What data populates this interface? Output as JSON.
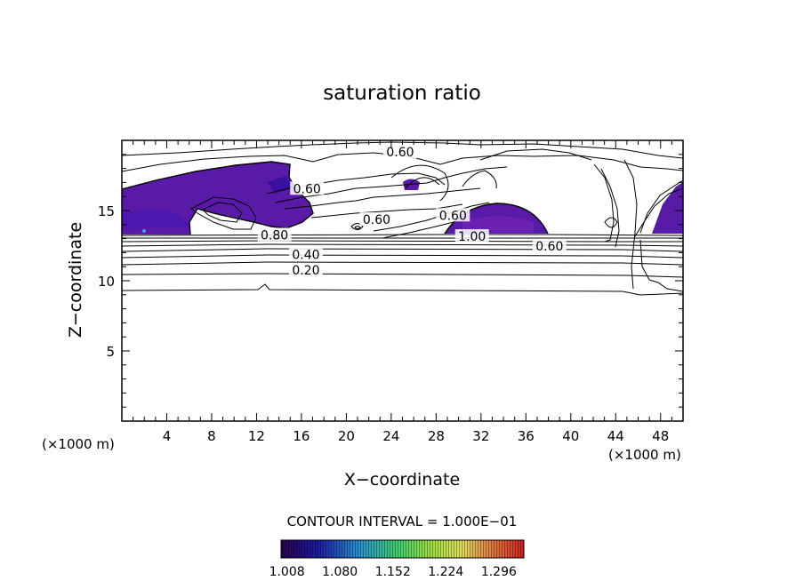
{
  "chart_data": {
    "type": "contour",
    "title": "saturation ratio",
    "xlabel": "X−coordinate",
    "ylabel": "Z−coordinate",
    "x_unit_left": "(×1000 m)",
    "x_unit_right": "(×1000 m)",
    "xlim": [
      0,
      50
    ],
    "ylim": [
      0,
      20
    ],
    "x_ticks": [
      4,
      8,
      12,
      16,
      20,
      24,
      28,
      32,
      36,
      40,
      44,
      48
    ],
    "y_ticks": [
      5,
      10,
      15
    ],
    "contour_interval_text": "CONTOUR INTERVAL = 1.000E−01",
    "colorbar": {
      "tick_labels": [
        "1.008",
        "1.080",
        "1.152",
        "1.224",
        "1.296"
      ],
      "range": [
        1.0,
        1.33
      ],
      "colors": [
        "#2a0050",
        "#1a1aa0",
        "#2a8fd0",
        "#3fd070",
        "#a0e040",
        "#e0e060",
        "#e08040",
        "#d02020"
      ]
    },
    "contour_labels": [
      {
        "text": "0.60",
        "x": 24.8,
        "z": 19.1
      },
      {
        "text": "0.60",
        "x": 16.5,
        "z": 16.5
      },
      {
        "text": "0.60",
        "x": 22.7,
        "z": 14.3
      },
      {
        "text": "0.60",
        "x": 29.5,
        "z": 14.6
      },
      {
        "text": "0.80",
        "x": 13.6,
        "z": 13.2
      },
      {
        "text": "0.40",
        "x": 16.4,
        "z": 11.8
      },
      {
        "text": "0.20",
        "x": 16.4,
        "z": 10.7
      },
      {
        "text": "1.00",
        "x": 31.2,
        "z": 13.1
      },
      {
        "text": "0.60",
        "x": 38.1,
        "z": 12.4
      }
    ],
    "supersaturated_regions_color": "#5a1aa8"
  }
}
